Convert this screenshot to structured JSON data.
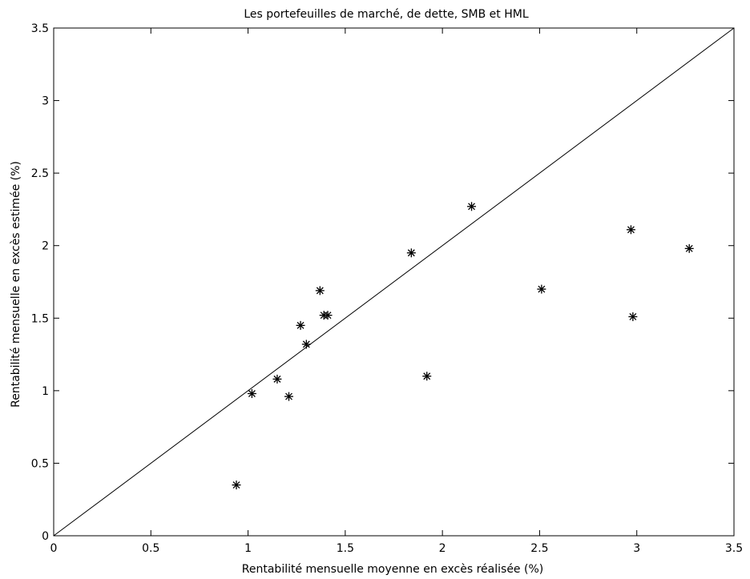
{
  "chart_data": {
    "type": "scatter",
    "title": "Les portefeuilles de marché, de dette, SMB et HML",
    "xlabel": "Rentabilité mensuelle moyenne en excès réalisée (%)",
    "ylabel": "Rentabilité mensuelle en excès estimée (%)",
    "xlim": [
      0,
      3.5
    ],
    "ylim": [
      0,
      3.5
    ],
    "xticks": [
      "0",
      "0.5",
      "1",
      "1.5",
      "2",
      "2.5",
      "3",
      "3.5"
    ],
    "yticks": [
      "0",
      "0.5",
      "1",
      "1.5",
      "2",
      "2.5",
      "3",
      "3.5"
    ],
    "grid": false,
    "marker": "asterisk",
    "reference_line": {
      "from": [
        0,
        0
      ],
      "to": [
        3.5,
        3.5
      ]
    },
    "points": [
      {
        "x": 0.94,
        "y": 0.35
      },
      {
        "x": 1.02,
        "y": 0.98
      },
      {
        "x": 1.15,
        "y": 1.08
      },
      {
        "x": 1.21,
        "y": 0.96
      },
      {
        "x": 1.27,
        "y": 1.45
      },
      {
        "x": 1.3,
        "y": 1.32
      },
      {
        "x": 1.37,
        "y": 1.69
      },
      {
        "x": 1.39,
        "y": 1.52
      },
      {
        "x": 1.41,
        "y": 1.52
      },
      {
        "x": 1.84,
        "y": 1.95
      },
      {
        "x": 1.92,
        "y": 1.1
      },
      {
        "x": 2.15,
        "y": 2.27
      },
      {
        "x": 2.51,
        "y": 1.7
      },
      {
        "x": 2.97,
        "y": 2.11
      },
      {
        "x": 2.98,
        "y": 1.51
      },
      {
        "x": 3.27,
        "y": 1.98
      }
    ]
  }
}
